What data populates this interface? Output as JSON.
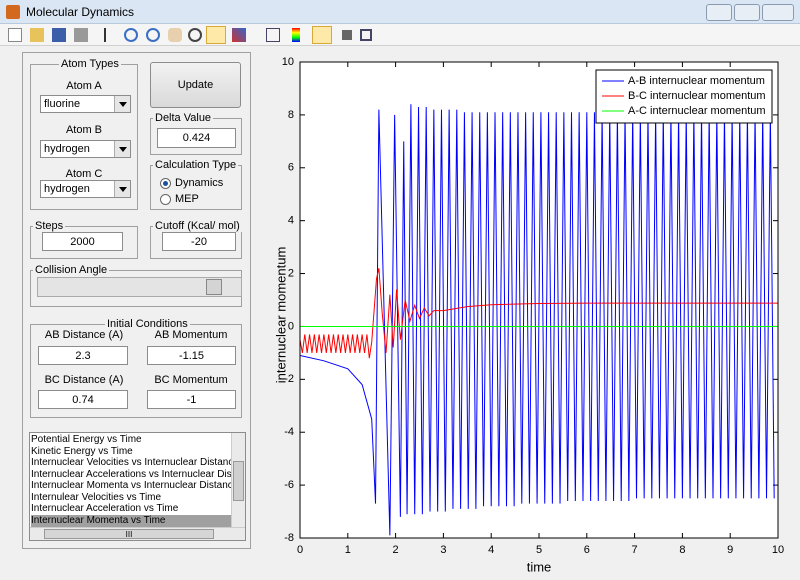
{
  "window": {
    "title": "Molecular Dynamics"
  },
  "controls": {
    "atom_types": {
      "title": "Atom Types",
      "atom_a_label": "Atom A",
      "atom_a": "fluorine",
      "atom_b_label": "Atom B",
      "atom_b": "hydrogen",
      "atom_c_label": "Atom C",
      "atom_c": "hydrogen"
    },
    "update_button": "Update",
    "delta": {
      "title": "Delta Value",
      "value": "0.424"
    },
    "calculation_type": {
      "title": "Calculation Type",
      "options": [
        "Dynamics",
        "MEP"
      ]
    },
    "steps": {
      "title": "Steps",
      "value": "2000"
    },
    "cutoff": {
      "title": "Cutoff (Kcal/ mol)",
      "value": "-20"
    },
    "collision_angle": {
      "title": "Collision Angle"
    },
    "initial_conditions": {
      "title": "Initial Conditions",
      "ab_distance_label": "AB Distance (A)",
      "ab_distance": "2.3",
      "ab_momentum_label": "AB Momentum",
      "ab_momentum": "-1.15",
      "bc_distance_label": "BC Distance (A)",
      "bc_distance": "0.74",
      "bc_momentum_label": "BC Momentum",
      "bc_momentum": "-1"
    },
    "plot_list": [
      "Potential Energy vs Time",
      "Kinetic Energy vs Time",
      "Internuclear Velocities vs Internuclear Distance",
      "Internuclear Accelerations vs Internuclear Dista",
      "Internuclear Momenta vs Internuclear Distance",
      "Internulear Velocities vs Time",
      "Internuclear Acceleration vs Time",
      "Internuclear Momenta vs Time"
    ],
    "scroll_label": "III"
  },
  "chart_data": {
    "type": "line",
    "x_label": "time",
    "y_label": "internuclear momentum",
    "xlim": [
      0,
      10
    ],
    "ylim": [
      -8,
      10
    ],
    "xticks": [
      0,
      1,
      2,
      3,
      4,
      5,
      6,
      7,
      8,
      9,
      10
    ],
    "yticks": [
      -8,
      -6,
      -4,
      -2,
      0,
      2,
      4,
      6,
      8,
      10
    ],
    "legend": "top-right",
    "series": [
      {
        "name": "A-B internuclear momentum",
        "color": "#0000ff",
        "x": [
          0,
          0.5,
          1,
          1.3,
          1.5,
          1.58,
          1.65,
          1.88,
          1.98,
          2.1,
          2.17,
          2.24,
          2.32,
          2.4,
          2.48,
          2.56,
          2.64,
          2.72,
          2.8,
          2.88,
          2.96,
          3.04,
          3.12,
          3.2,
          3.28,
          3.36,
          3.44,
          3.52,
          3.6,
          3.68,
          3.76,
          3.84,
          3.92,
          4,
          4.08,
          4.16,
          4.24,
          4.32,
          4.4,
          4.48,
          4.56,
          4.64,
          4.72,
          4.8,
          4.88,
          4.96,
          5.04,
          5.12,
          5.2,
          5.28,
          5.36,
          5.44,
          5.52,
          5.6,
          5.68,
          5.76,
          5.84,
          5.92,
          6,
          6.08,
          6.16,
          6.24,
          6.32,
          6.4,
          6.48,
          6.56,
          6.64,
          6.72,
          6.8,
          6.88,
          6.96,
          7.04,
          7.12,
          7.2,
          7.28,
          7.36,
          7.44,
          7.52,
          7.6,
          7.68,
          7.76,
          7.84,
          7.92,
          8,
          8.08,
          8.16,
          8.24,
          8.32,
          8.4,
          8.48,
          8.56,
          8.64,
          8.72,
          8.8,
          8.88,
          8.96,
          9.04,
          9.12,
          9.2,
          9.28,
          9.36,
          9.44,
          9.52,
          9.6,
          9.68,
          9.76,
          9.84,
          9.92
        ],
        "values": [
          -1.1,
          -1.3,
          -1.6,
          -2.2,
          -3.5,
          -6.7,
          8.2,
          -7.9,
          8.0,
          -7.2,
          7.0,
          -7.1,
          8.4,
          -7.1,
          8.3,
          -7.1,
          8.3,
          -7.0,
          8.2,
          -7.0,
          8.2,
          -7.0,
          8.2,
          -6.9,
          8.2,
          -6.9,
          8.1,
          -6.9,
          8.1,
          -6.9,
          8.1,
          -6.8,
          8.1,
          -6.8,
          8.1,
          -6.8,
          8.1,
          -6.8,
          8.1,
          -6.8,
          8.1,
          -6.7,
          8.1,
          -6.7,
          8.1,
          -6.7,
          8.1,
          -6.7,
          8.1,
          -6.7,
          8.1,
          -6.7,
          8.1,
          -6.6,
          8.1,
          -6.6,
          8.1,
          -6.6,
          8.1,
          -6.6,
          8.1,
          -6.6,
          8.1,
          -6.6,
          8.1,
          -6.6,
          8.1,
          -6.6,
          8.1,
          -6.6,
          8.1,
          -6.5,
          8.1,
          -6.5,
          8.1,
          -6.5,
          8.1,
          -6.5,
          8.1,
          -6.5,
          8.1,
          -6.5,
          8.1,
          -6.5,
          8.1,
          -6.5,
          8.1,
          -6.5,
          8.1,
          -6.5,
          8.1,
          -6.5,
          8.1,
          -6.5,
          8.1,
          -6.5,
          8.1,
          -6.5,
          8.1,
          -6.5,
          8.1,
          -6.5,
          8.1,
          -6.5,
          8.1,
          -6.5,
          8.1,
          -6.5
        ]
      },
      {
        "name": "B-C internuclear momentum",
        "color": "#ff0000",
        "x": [
          0,
          0.05,
          0.1,
          0.15,
          0.2,
          0.25,
          0.3,
          0.35,
          0.4,
          0.45,
          0.5,
          0.55,
          0.6,
          0.65,
          0.7,
          0.75,
          0.8,
          0.85,
          0.9,
          0.95,
          1,
          1.05,
          1.1,
          1.15,
          1.2,
          1.25,
          1.3,
          1.35,
          1.4,
          1.45,
          1.5,
          1.6,
          1.65,
          1.72,
          1.8,
          1.88,
          1.95,
          2.02,
          2.1,
          2.2,
          2.3,
          2.4,
          2.5,
          2.6,
          2.7,
          2.8,
          3,
          3.5,
          4,
          5,
          6,
          8,
          10
        ],
        "values": [
          -0.5,
          -1.0,
          -0.3,
          -1.0,
          -0.3,
          -1.0,
          -0.3,
          -1.0,
          -0.3,
          -1.0,
          -0.3,
          -1.0,
          -0.3,
          -1.0,
          -0.3,
          -1.0,
          -0.3,
          -1.0,
          -0.3,
          -1.0,
          -0.3,
          -1.0,
          -0.3,
          -1.0,
          -0.3,
          -1.0,
          -0.3,
          -1.0,
          -0.3,
          -1.2,
          -0.6,
          1.8,
          2.2,
          0.5,
          -1.0,
          1.2,
          -0.8,
          1.4,
          -0.5,
          1.0,
          0.2,
          0.8,
          0.3,
          0.7,
          0.4,
          0.6,
          0.6,
          0.75,
          0.82,
          0.87,
          0.88,
          0.88,
          0.88
        ]
      },
      {
        "name": "A-C internuclear momentum",
        "color": "#00ff00",
        "x": [
          0,
          10
        ],
        "values": [
          0,
          0
        ]
      }
    ]
  }
}
